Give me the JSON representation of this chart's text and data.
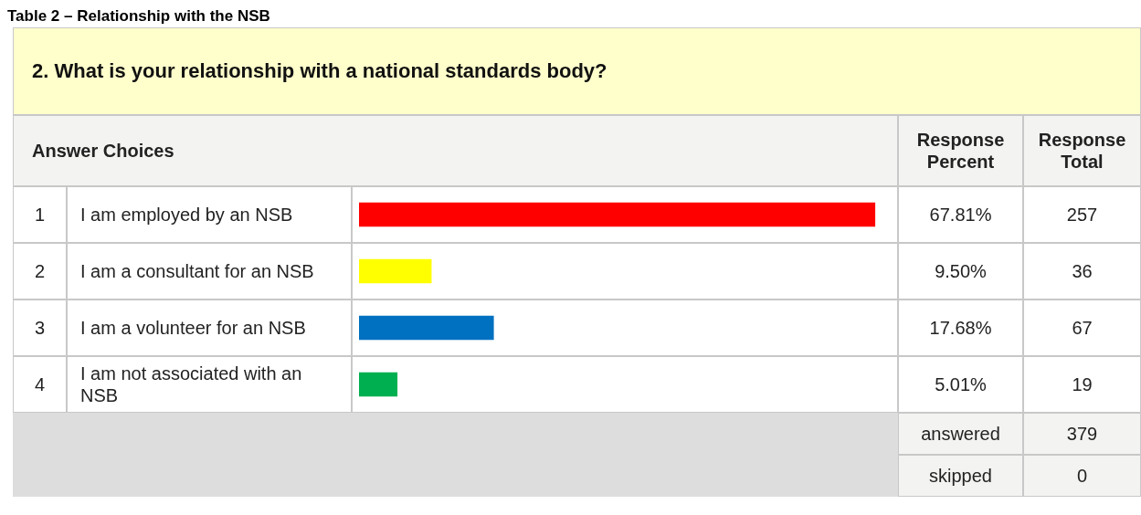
{
  "chart_data": {
    "type": "bar",
    "orientation": "horizontal",
    "title": "Table 2 – Relationship with the NSB",
    "subtitle": "2. What is your relationship with a national standards body?",
    "categories": [
      "I am employed by an NSB",
      "I am a consultant for an NSB",
      "I am a volunteer for an NSB",
      "I am not associated with an NSB"
    ],
    "values": [
      67.81,
      9.5,
      17.68,
      5.01
    ],
    "colors": [
      "#ff0000",
      "#ffff00",
      "#0070c0",
      "#00b050"
    ],
    "value_labels": [
      "67.81%",
      "9.50%",
      "17.68%",
      "5.01%"
    ],
    "tick_labels": false,
    "legend": false,
    "annotations": [
      "Answer Choices",
      "Response Percent",
      "Response Total",
      "answered",
      "379",
      "skipped",
      "0",
      "1",
      "257",
      "2",
      "36",
      "3",
      "67",
      "4",
      "19"
    ]
  }
}
